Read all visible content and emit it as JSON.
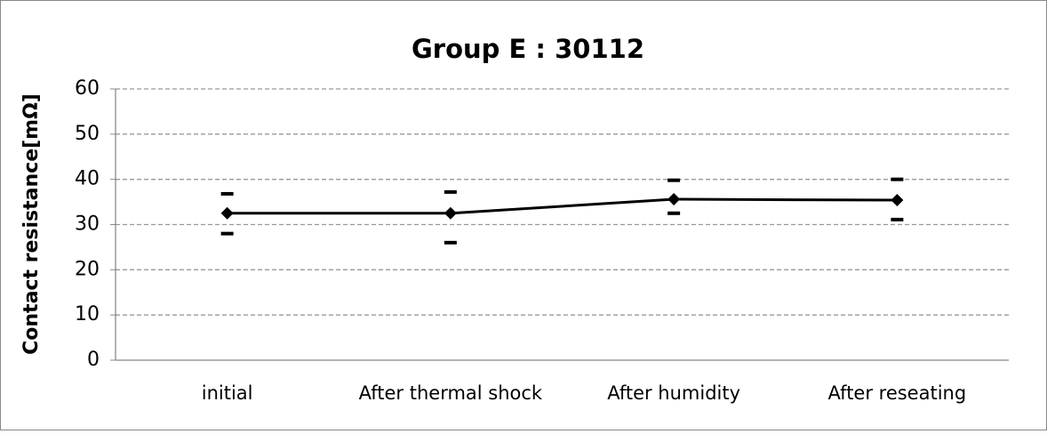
{
  "chart_data": {
    "type": "line",
    "title": "Group E : 30112",
    "y_label": "Contact resistance[mΩ]",
    "categories": [
      "initial",
      "After thermal shock",
      "After humidity",
      "After reseating"
    ],
    "series": [
      {
        "color": "#000000",
        "marker": "diamond",
        "line": true,
        "values": [
          32.5,
          32.5,
          35.6,
          35.4
        ]
      },
      {
        "color": "#000000",
        "marker": "dash",
        "line": false,
        "values": [
          36.8,
          37.2,
          39.8,
          40.0
        ]
      },
      {
        "color": "#000000",
        "marker": "dash",
        "line": false,
        "values": [
          28.0,
          26.0,
          32.5,
          31.1
        ]
      }
    ],
    "ylim": [
      0,
      60
    ],
    "yticks": [
      0,
      10,
      20,
      30,
      40,
      50,
      60
    ],
    "grid": true
  }
}
